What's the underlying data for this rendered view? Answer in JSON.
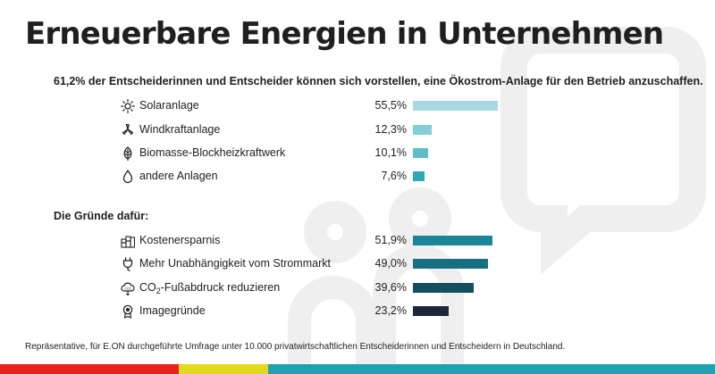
{
  "title": "Erneuerbare Energien in Unternehmen",
  "subtitle": "61,2% der Entscheiderinnen und Entscheider können sich vorstellen, eine Ökostrom-Anlage für den Betrieb anzuschaffen.",
  "section_reasons": "Die Gründe dafür:",
  "footnote": "Repräsentative, für E.ON durchgeführte Umfrage unter 10.000 privatwirtschaftlichen Entscheiderinnen und Entscheidern in Deutschland.",
  "co2_label": {
    "pre": "CO",
    "sub": "2",
    "post": "-Fußabdruck reduzieren"
  },
  "colors": {
    "brand_red": "#e8211d",
    "brand_yellow": "#e2d91a",
    "brand_teal": "#1ea2b1",
    "deco_gray": "#ececec"
  },
  "chart_data": [
    {
      "type": "bar",
      "orientation": "horizontal",
      "categories": [
        "Solaranlage",
        "Windkraftanlage",
        "Biomasse-Blockheizkraftwerk",
        "andere Anlagen"
      ],
      "values": [
        55.5,
        12.3,
        10.1,
        7.6
      ],
      "value_labels": [
        "55,5%",
        "12,3%",
        "10,1%",
        "7,6%"
      ],
      "icons": [
        "sun-icon",
        "wind-turbine-icon",
        "leaf-icon",
        "drop-icon"
      ],
      "colors": [
        "#a8d9e0",
        "#82cfd6",
        "#5cbec8",
        "#2fa9b6"
      ],
      "unit": "%"
    },
    {
      "type": "bar",
      "orientation": "horizontal",
      "categories": [
        "Kostenersparnis",
        "Mehr Unabhängigkeit vom Strommarkt",
        "CO2-Fußabdruck reduzieren",
        "Imagegründe"
      ],
      "values": [
        51.9,
        49.0,
        39.6,
        23.2
      ],
      "value_labels": [
        "51,9%",
        "49,0%",
        "39,6%",
        "23,2%"
      ],
      "icons": [
        "coins-icon",
        "plug-icon",
        "co2-cloud-icon",
        "award-icon"
      ],
      "colors": [
        "#1b8697",
        "#17707f",
        "#134f5e",
        "#1b2839"
      ],
      "unit": "%"
    }
  ]
}
